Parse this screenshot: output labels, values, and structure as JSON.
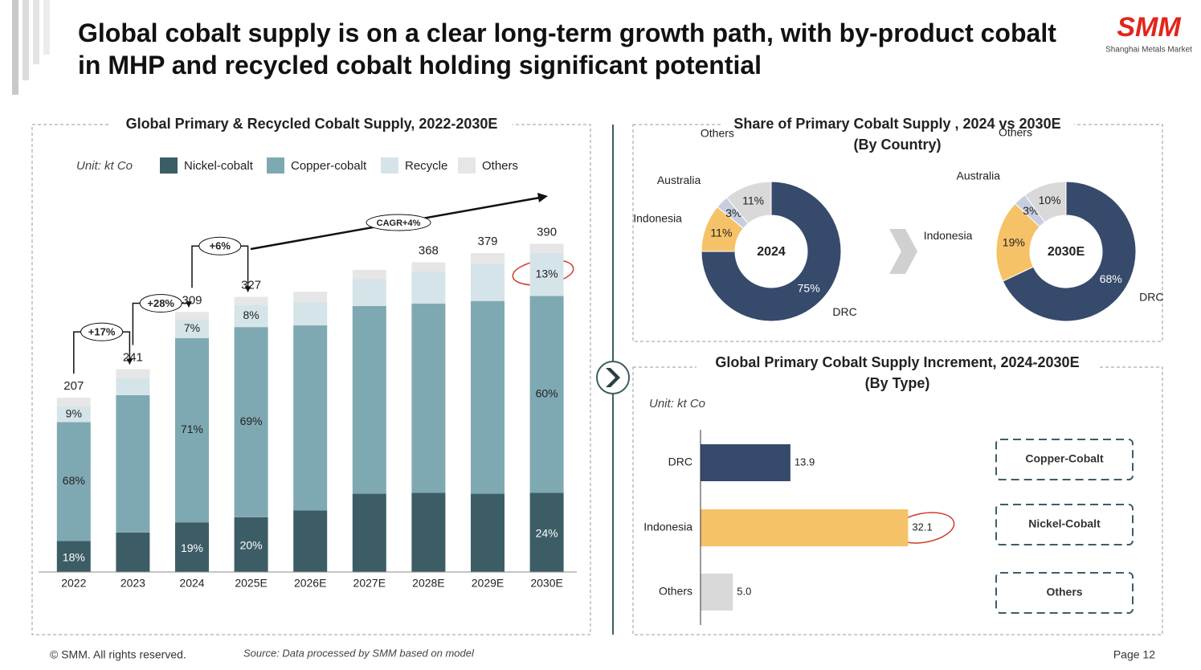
{
  "header": {
    "title_lines": [
      "Global cobalt supply is on a clear long-term growth path, with by-product cobalt",
      "in MHP and recycled cobalt holding significant potential"
    ],
    "logo": "SMM",
    "logo_subtitle": "Shanghai Metals Market"
  },
  "chart_data": [
    {
      "type": "stacked_bar",
      "title": "Global Primary & Recycled Cobalt Supply, 2022-2030E",
      "unit": "Unit: kt Co",
      "categories": [
        "2022",
        "2023",
        "2024",
        "2025E",
        "2026E",
        "2027E",
        "2028E",
        "2029E",
        "2030E"
      ],
      "series": [
        {
          "name": "Nickel-cobalt",
          "color": "#3d5d66",
          "values": [
            37,
            47,
            59,
            65,
            73,
            93,
            94,
            93,
            94
          ],
          "share_labels": [
            "18%",
            null,
            "19%",
            "20%",
            null,
            null,
            null,
            null,
            "24%"
          ]
        },
        {
          "name": "Copper-cobalt",
          "color": "#7fa9b2",
          "values": [
            141,
            163,
            219,
            226,
            220,
            223,
            225,
            229,
            234
          ],
          "share_labels": [
            "68%",
            null,
            "71%",
            "69%",
            null,
            null,
            null,
            null,
            "60%"
          ]
        },
        {
          "name": "Recycle",
          "color": "#d5e4e9",
          "values": [
            19,
            20,
            22,
            26,
            28,
            32,
            38,
            44,
            51
          ],
          "share_labels": [
            "9%",
            null,
            "7%",
            "8%",
            null,
            null,
            null,
            null,
            "13%"
          ]
        },
        {
          "name": "Others",
          "color": "#e6e6e6",
          "values": [
            10,
            11,
            9,
            10,
            12,
            11,
            11,
            13,
            11
          ],
          "share_labels": [
            null,
            null,
            null,
            null,
            null,
            null,
            null,
            null,
            null
          ]
        }
      ],
      "total_labels": [
        207,
        241,
        309,
        327,
        null,
        null,
        368,
        379,
        390
      ],
      "annotations": [
        "+17%",
        "+28%",
        "+6%",
        "CAGR+4%"
      ],
      "ylim": [
        0,
        420
      ]
    },
    {
      "type": "donut",
      "title": "Share of Primary Cobalt Supply , 2024 vs 2030E",
      "subtitle": "(By Country)",
      "colors": [
        "#364a6b",
        "#f6c267",
        "#c7cedf",
        "#d9d9d9"
      ],
      "pies": [
        {
          "center_label": "2024",
          "categories": [
            "DRC",
            "Indonesia",
            "Australia",
            "Others"
          ],
          "values": [
            75,
            11,
            3,
            11
          ],
          "value_labels": [
            "75%",
            "11%",
            "3%",
            "11%"
          ]
        },
        {
          "center_label": "2030E",
          "categories": [
            "DRC",
            "Indonesia",
            "Australia",
            "Others"
          ],
          "values": [
            68,
            19,
            3,
            10
          ],
          "value_labels": [
            "68%",
            "19%",
            "3%",
            "10%"
          ]
        }
      ]
    },
    {
      "type": "hbar",
      "title": "Global Primary Cobalt Supply Increment, 2024-2030E",
      "subtitle": "(By Type)",
      "unit": "Unit: kt Co",
      "categories": [
        "DRC",
        "Indonesia",
        "Others"
      ],
      "values": [
        13.9,
        32.1,
        5.0
      ],
      "value_labels": [
        "13.9",
        "32.1",
        "5.0"
      ],
      "colors": [
        "#364a6b",
        "#f6c267",
        "#d9d9d9"
      ],
      "xlim": [
        0,
        40
      ],
      "type_labels": [
        "Copper-Cobalt",
        "Nickel-Cobalt",
        "Others"
      ]
    }
  ],
  "footer": {
    "copyright": "© SMM. All rights reserved.",
    "source": "Source: Data processed by SMM based on model",
    "page": "Page 12"
  }
}
